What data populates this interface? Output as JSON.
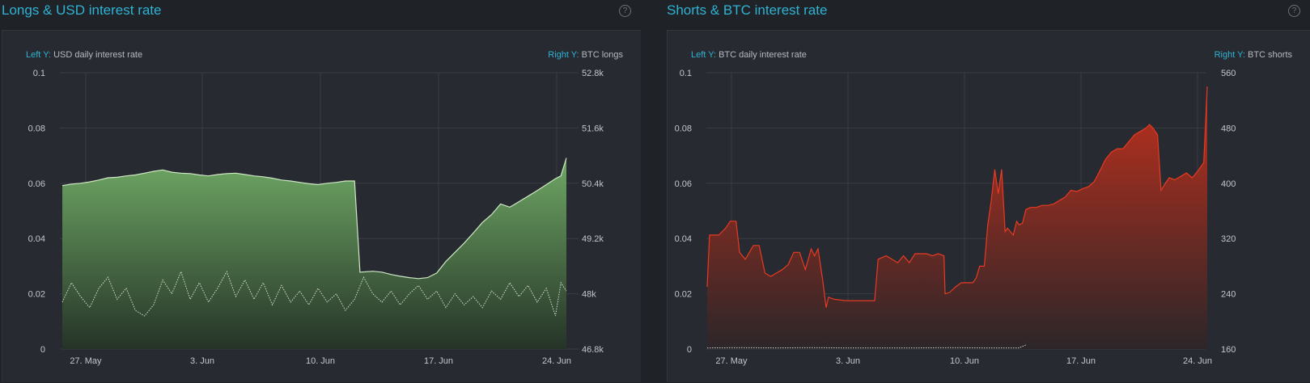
{
  "panels": [
    {
      "title": "Longs & USD interest rate",
      "help_icon": "question-circle-icon",
      "left_axis_key": "Left Y:",
      "left_axis_name": "USD daily interest rate",
      "right_axis_key": "Right Y:",
      "right_axis_name": "BTC longs"
    },
    {
      "title": "Shorts & BTC interest rate",
      "help_icon": "question-circle-icon",
      "left_axis_key": "Left Y:",
      "left_axis_name": "BTC daily interest rate",
      "right_axis_key": "Right Y:",
      "right_axis_name": "BTC shorts"
    }
  ],
  "chart_data": [
    {
      "type": "area",
      "title": "Longs & USD interest rate",
      "x_ticks": [
        "27. May",
        "3. Jun",
        "10. Jun",
        "17. Jun",
        "24. Jun"
      ],
      "x_range_days": [
        -3,
        27
      ],
      "left_y": {
        "label": "USD daily interest rate",
        "ticks": [
          "0",
          "0.02",
          "0.04",
          "0.06",
          "0.08",
          "0.1"
        ],
        "range": [
          0,
          0.1
        ]
      },
      "right_y": {
        "label": "BTC longs",
        "ticks": [
          "46.8k",
          "48k",
          "49.2k",
          "50.4k",
          "51.6k",
          "52.8k"
        ],
        "range": [
          46800,
          52800
        ]
      },
      "grid": true,
      "colors": {
        "area_top": "#6fa865",
        "area_bottom": "#253327",
        "line": "#cfe8c4",
        "dotted": "#d7dbd6"
      },
      "series": [
        {
          "name": "BTC longs",
          "axis": "right",
          "style": "area",
          "points": [
            [
              -3,
              50350
            ],
            [
              -2.5,
              50380
            ],
            [
              -2,
              50400
            ],
            [
              -1.5,
              50430
            ],
            [
              -1,
              50470
            ],
            [
              -0.5,
              50520
            ],
            [
              0,
              50530
            ],
            [
              0.5,
              50560
            ],
            [
              1,
              50580
            ],
            [
              1.5,
              50620
            ],
            [
              2,
              50660
            ],
            [
              2.5,
              50690
            ],
            [
              3,
              50640
            ],
            [
              3.5,
              50620
            ],
            [
              4,
              50610
            ],
            [
              4.5,
              50580
            ],
            [
              5,
              50560
            ],
            [
              5.5,
              50590
            ],
            [
              6,
              50610
            ],
            [
              6.5,
              50620
            ],
            [
              7,
              50590
            ],
            [
              7.5,
              50560
            ],
            [
              8,
              50540
            ],
            [
              8.5,
              50510
            ],
            [
              9,
              50470
            ],
            [
              9.5,
              50450
            ],
            [
              10,
              50420
            ],
            [
              10.5,
              50390
            ],
            [
              11,
              50370
            ],
            [
              11.5,
              50400
            ],
            [
              12,
              50420
            ],
            [
              12.5,
              50450
            ],
            [
              13,
              50450
            ],
            [
              13.3,
              48470
            ],
            [
              14,
              48490
            ],
            [
              14.5,
              48470
            ],
            [
              15,
              48420
            ],
            [
              15.5,
              48380
            ],
            [
              16,
              48350
            ],
            [
              16.5,
              48330
            ],
            [
              17,
              48350
            ],
            [
              17.5,
              48450
            ],
            [
              18,
              48700
            ],
            [
              18.5,
              48900
            ],
            [
              19,
              49100
            ],
            [
              19.5,
              49320
            ],
            [
              20,
              49550
            ],
            [
              20.5,
              49720
            ],
            [
              21,
              49950
            ],
            [
              21.5,
              49880
            ],
            [
              22,
              50000
            ],
            [
              22.5,
              50120
            ],
            [
              23,
              50240
            ],
            [
              23.5,
              50370
            ],
            [
              24,
              50500
            ],
            [
              24.3,
              50560
            ],
            [
              24.6,
              50950
            ]
          ]
        },
        {
          "name": "USD daily interest rate",
          "axis": "left",
          "style": "dotted",
          "points": [
            [
              -3,
              0.017
            ],
            [
              -2.5,
              0.024
            ],
            [
              -2,
              0.019
            ],
            [
              -1.5,
              0.015
            ],
            [
              -1,
              0.022
            ],
            [
              -0.5,
              0.026
            ],
            [
              0,
              0.018
            ],
            [
              0.5,
              0.022
            ],
            [
              1,
              0.014
            ],
            [
              1.5,
              0.012
            ],
            [
              2,
              0.016
            ],
            [
              2.5,
              0.025
            ],
            [
              3,
              0.02
            ],
            [
              3.5,
              0.028
            ],
            [
              4,
              0.018
            ],
            [
              4.5,
              0.024
            ],
            [
              5,
              0.017
            ],
            [
              5.5,
              0.022
            ],
            [
              6,
              0.028
            ],
            [
              6.5,
              0.019
            ],
            [
              7,
              0.025
            ],
            [
              7.5,
              0.018
            ],
            [
              8,
              0.024
            ],
            [
              8.5,
              0.016
            ],
            [
              9,
              0.023
            ],
            [
              9.5,
              0.017
            ],
            [
              10,
              0.021
            ],
            [
              10.5,
              0.016
            ],
            [
              11,
              0.022
            ],
            [
              11.5,
              0.017
            ],
            [
              12,
              0.02
            ],
            [
              12.5,
              0.014
            ],
            [
              13,
              0.018
            ],
            [
              13.5,
              0.026
            ],
            [
              14,
              0.02
            ],
            [
              14.5,
              0.017
            ],
            [
              15,
              0.021
            ],
            [
              15.5,
              0.016
            ],
            [
              16,
              0.02
            ],
            [
              16.5,
              0.023
            ],
            [
              17,
              0.018
            ],
            [
              17.5,
              0.021
            ],
            [
              18,
              0.015
            ],
            [
              18.5,
              0.02
            ],
            [
              19,
              0.016
            ],
            [
              19.5,
              0.019
            ],
            [
              20,
              0.015
            ],
            [
              20.5,
              0.021
            ],
            [
              21,
              0.018
            ],
            [
              21.5,
              0.024
            ],
            [
              22,
              0.019
            ],
            [
              22.5,
              0.023
            ],
            [
              23,
              0.017
            ],
            [
              23.5,
              0.022
            ],
            [
              24,
              0.012
            ],
            [
              24.3,
              0.024
            ],
            [
              24.6,
              0.021
            ]
          ]
        }
      ]
    },
    {
      "type": "area",
      "title": "Shorts & BTC interest rate",
      "x_ticks": [
        "27. May",
        "3. Jun",
        "10. Jun",
        "17. Jun",
        "24. Jun"
      ],
      "x_range_days": [
        -3,
        27
      ],
      "left_y": {
        "label": "BTC daily interest rate",
        "ticks": [
          "0",
          "0.02",
          "0.04",
          "0.06",
          "0.08",
          "0.1"
        ],
        "range": [
          0,
          0.1
        ]
      },
      "right_y": {
        "label": "BTC shorts",
        "ticks": [
          "160",
          "240",
          "320",
          "400",
          "480",
          "560"
        ],
        "range": [
          160,
          560
        ]
      },
      "grid": true,
      "colors": {
        "area_top": "#c0301d",
        "area_bottom": "#2c2629",
        "line": "#e83a22",
        "dotted": "#cfd2d6"
      },
      "series": [
        {
          "name": "BTC shorts",
          "axis": "right",
          "style": "area",
          "points": [
            [
              -3,
              250
            ],
            [
              -2.8,
              325
            ],
            [
              -2,
              325
            ],
            [
              -1.4,
              335
            ],
            [
              -1,
              345
            ],
            [
              -0.5,
              345
            ],
            [
              -0.2,
              300
            ],
            [
              0.3,
              290
            ],
            [
              1,
              310
            ],
            [
              1.5,
              310
            ],
            [
              2,
              270
            ],
            [
              2.5,
              265
            ],
            [
              3,
              270
            ],
            [
              3.5,
              275
            ],
            [
              4,
              282
            ],
            [
              4.5,
              300
            ],
            [
              5,
              300
            ],
            [
              5.5,
              275
            ],
            [
              6,
              305
            ],
            [
              6.3,
              295
            ],
            [
              6.6,
              305
            ],
            [
              7,
              260
            ],
            [
              7.3,
              220
            ],
            [
              7.5,
              235
            ],
            [
              8,
              232
            ],
            [
              9,
              230
            ],
            [
              10,
              230
            ],
            [
              11.5,
              230
            ],
            [
              11.8,
              290
            ],
            [
              12.5,
              295
            ],
            [
              13,
              290
            ],
            [
              13.5,
              285
            ],
            [
              14,
              295
            ],
            [
              14.5,
              285
            ],
            [
              15,
              298
            ],
            [
              16,
              298
            ],
            [
              16.5,
              295
            ],
            [
              17,
              298
            ],
            [
              17.5,
              295
            ],
            [
              17.6,
              240
            ],
            [
              18,
              242
            ],
            [
              18.5,
              250
            ],
            [
              19,
              256
            ],
            [
              20,
              256
            ],
            [
              20.3,
              263
            ],
            [
              20.6,
              280
            ],
            [
              21,
              280
            ],
            [
              21.3,
              340
            ],
            [
              21.6,
              375
            ],
            [
              21.9,
              420
            ],
            [
              22.2,
              385
            ],
            [
              22.5,
              420
            ],
            [
              22.8,
              330
            ],
            [
              23,
              335
            ],
            [
              23.5,
              325
            ],
            [
              23.8,
              345
            ],
            [
              24,
              340
            ],
            [
              24.3,
              342
            ],
            [
              24.6,
              362
            ],
            [
              25,
              365
            ],
            [
              25.5,
              365
            ],
            [
              26,
              368
            ],
            [
              26.5,
              368
            ],
            [
              27,
              370
            ],
            [
              27.5,
              375
            ],
            [
              28,
              380
            ],
            [
              28.5,
              390
            ],
            [
              29,
              388
            ],
            [
              29.5,
              392
            ],
            [
              30,
              395
            ],
            [
              30.5,
              402
            ],
            [
              31,
              418
            ],
            [
              31.5,
              435
            ],
            [
              32,
              445
            ],
            [
              32.5,
              450
            ],
            [
              33,
              450
            ],
            [
              33.5,
              460
            ],
            [
              34,
              470
            ],
            [
              34.5,
              475
            ],
            [
              35,
              480
            ],
            [
              35.3,
              485
            ],
            [
              35.6,
              480
            ],
            [
              36,
              470
            ],
            [
              36.3,
              390
            ],
            [
              36.6,
              398
            ],
            [
              37,
              408
            ],
            [
              37.5,
              405
            ],
            [
              38,
              410
            ],
            [
              38.5,
              415
            ],
            [
              39,
              408
            ],
            [
              39.5,
              418
            ],
            [
              40,
              430
            ],
            [
              40.3,
              540
            ]
          ]
        },
        {
          "name": "BTC daily interest rate",
          "axis": "left",
          "style": "dotted",
          "points": [
            [
              -3,
              0.0004
            ],
            [
              0,
              0.0005
            ],
            [
              3,
              0.0004
            ],
            [
              6,
              0.0005
            ],
            [
              9,
              0.0004
            ],
            [
              12,
              0.0004
            ],
            [
              15,
              0.0004
            ],
            [
              18,
              0.0005
            ],
            [
              21,
              0.0004
            ],
            [
              24,
              0.0004
            ],
            [
              24.6,
              0.0015
            ]
          ]
        }
      ]
    }
  ]
}
